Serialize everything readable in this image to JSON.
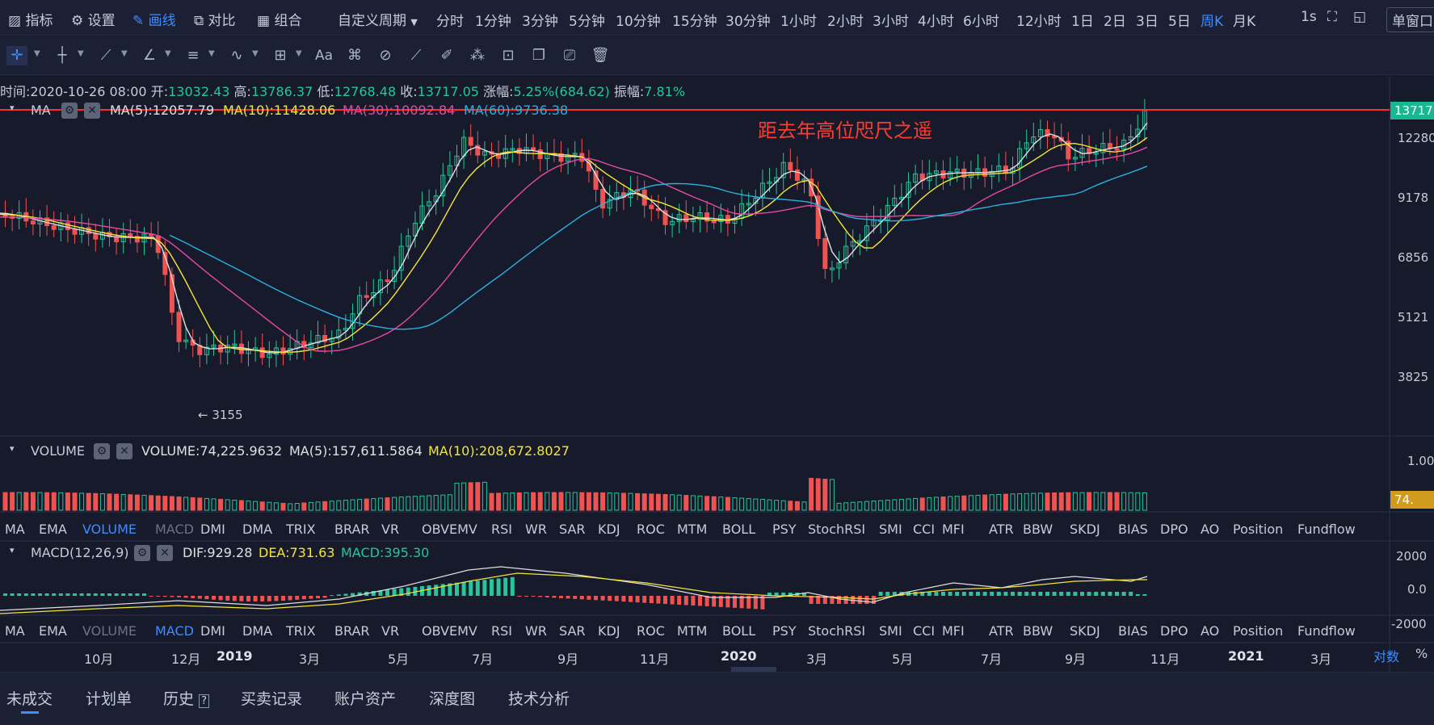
{
  "toolbar": {
    "indicators": "指标",
    "settings": "设置",
    "draw": "画线",
    "compare": "对比",
    "combine": "组合",
    "custom_period": "自定义周期",
    "periods": [
      "分时",
      "1分钟",
      "3分钟",
      "5分钟",
      "10分钟",
      "15分钟",
      "30分钟",
      "1小时",
      "2小时",
      "3小时",
      "4小时",
      "6小时",
      "12小时",
      "1日",
      "2日",
      "3日",
      "5日",
      "周K",
      "月K"
    ],
    "active_period": "周K",
    "refresh": "1s",
    "single_window": "单窗口"
  },
  "info": {
    "time_label": "时间:",
    "time": "2020-10-26 08:00",
    "open_label": "开:",
    "open": "13032.43",
    "high_label": "高:",
    "high": "13786.37",
    "low_label": "低:",
    "low": "12768.48",
    "close_label": "收:",
    "close": "13717.05",
    "change_label": "涨幅:",
    "change": "5.25%(684.62)",
    "amp_label": "振幅:",
    "amp": "7.81%"
  },
  "ma_row": {
    "name": "MA",
    "ma5": "MA(5):12057.79",
    "ma10": "MA(10):11428.06",
    "ma30": "MA(30):10092.84",
    "ma60": "MA(60):9736.38"
  },
  "annotation": "距去年高位咫尺之遥",
  "low_marker": "← 3155",
  "price_axis": [
    "13717",
    "12280",
    "9178",
    "6856",
    "5121",
    "3825"
  ],
  "volume_row": {
    "name": "VOLUME",
    "vol": "VOLUME:74,225.9632",
    "ma5": "MA(5):157,611.5864",
    "ma10": "MA(10):208,672.8027"
  },
  "volume_axis": [
    "1.00",
    "74."
  ],
  "indicator_tabs": [
    "MA",
    "EMA",
    "VOLUME",
    "MACD",
    "DMI",
    "DMA",
    "TRIX",
    "BRAR",
    "VR",
    "OBV",
    "EMV",
    "RSI",
    "WR",
    "SAR",
    "KDJ",
    "ROC",
    "MTM",
    "BOLL",
    "PSY",
    "StochRSI",
    "SMI",
    "CCI",
    "MFI",
    "ATR",
    "BBW",
    "SKDJ",
    "BIAS",
    "DPO",
    "AO",
    "Position",
    "Fundflow"
  ],
  "macd_row": {
    "name": "MACD(12,26,9)",
    "dif": "DIF:929.28",
    "dea": "DEA:731.63",
    "macd": "MACD:395.30"
  },
  "macd_axis": [
    "2000",
    "0.0",
    "-2000"
  ],
  "time_axis": [
    "10月",
    "12月",
    "2019",
    "3月",
    "5月",
    "7月",
    "9月",
    "11月",
    "2020",
    "3月",
    "5月",
    "7月",
    "9月",
    "11月",
    "2021",
    "3月"
  ],
  "log_toggle": "对数",
  "pct_toggle": "%",
  "bottom_tabs": [
    "未成交",
    "计划单",
    "历史",
    "买卖记录",
    "账户资产",
    "深度图",
    "技术分析"
  ],
  "colors": {
    "up": "#ef5350",
    "down": "#26c69a",
    "ma5": "#e0e0e0",
    "ma10": "#f5e53a",
    "ma30": "#e64aa0",
    "ma60": "#29b1e0",
    "accent": "#3f8cff",
    "annotation": "#ff3b30"
  },
  "chart_data": {
    "type": "candlestick",
    "last_price": 13717,
    "low": 3155
  }
}
